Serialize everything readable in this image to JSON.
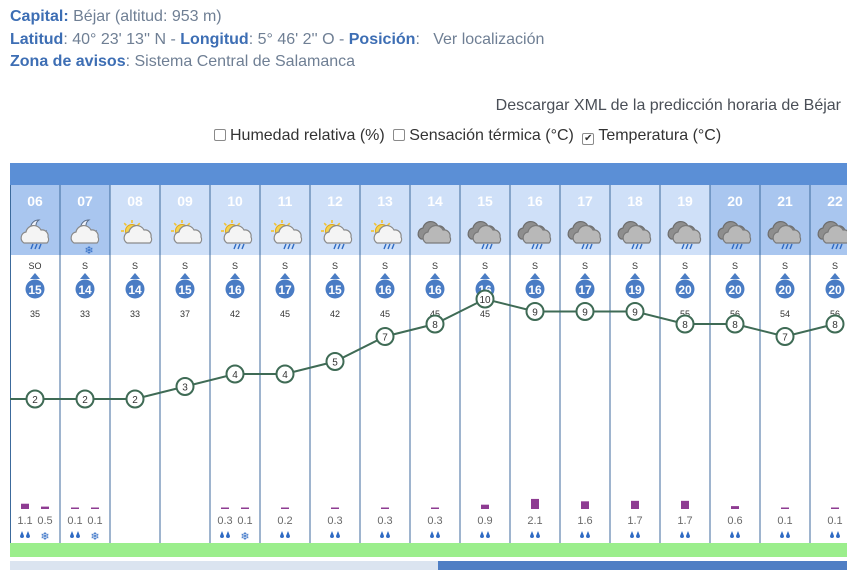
{
  "info": {
    "capital_label": "Capital:",
    "capital_value": "Béjar (altitud: 953 m)",
    "lat_label": "Latitud",
    "lat_value": ": 40° 23' 13'' N - ",
    "lon_label": "Longitud",
    "lon_value": ": 5° 46' 2'' O - ",
    "pos_label": "Posición",
    "pos_sep": ":",
    "pos_link": "Ver localización",
    "zona_label": "Zona de avisos",
    "zona_value": ": Sistema Central de Salamanca"
  },
  "xml_link": "Descargar XML de la predicción horaria de Béjar",
  "options": [
    {
      "label": "Humedad relativa (%)",
      "checked": false
    },
    {
      "label": "Sensación térmica (°C)",
      "checked": false
    },
    {
      "label": "Temperatura (°C)",
      "checked": true
    }
  ],
  "colors": {
    "header_band": "#5b8fd6",
    "night_cell": "#a9c6ef",
    "day_cell": "#cfe0f8",
    "wind_circle": "#4a7cc4",
    "line": "#3f6b55",
    "rain_bar": "#8e3c92",
    "green_band": "#9bee8c"
  },
  "chart_data": {
    "type": "line",
    "hours": [
      "06",
      "07",
      "08",
      "09",
      "10",
      "11",
      "12",
      "13",
      "14",
      "15",
      "16",
      "17",
      "18",
      "19",
      "20",
      "21",
      "22"
    ],
    "night": [
      true,
      true,
      false,
      false,
      false,
      false,
      false,
      false,
      false,
      false,
      false,
      false,
      false,
      false,
      true,
      true,
      true
    ],
    "sky": [
      "rain-night",
      "snow-night",
      "sun-clouds",
      "sun-clouds",
      "sun-rain",
      "sun-rain",
      "sun-rain",
      "sun-rain",
      "clouds",
      "clouds-rain",
      "clouds-rain",
      "clouds-rain",
      "clouds-rain",
      "clouds-rain",
      "clouds-rain",
      "clouds-rain",
      "clouds-rain"
    ],
    "wind_dir": [
      "SO",
      "S",
      "S",
      "S",
      "S",
      "S",
      "S",
      "S",
      "S",
      "S",
      "S",
      "S",
      "S",
      "S",
      "S",
      "S",
      "S"
    ],
    "wind_speed": [
      15,
      14,
      14,
      15,
      16,
      17,
      15,
      16,
      16,
      16,
      16,
      17,
      19,
      20,
      20,
      20,
      20
    ],
    "gusts": [
      35,
      33,
      33,
      37,
      42,
      45,
      42,
      45,
      45,
      45,
      46,
      49,
      53,
      55,
      56,
      54,
      56
    ],
    "temperature": [
      2,
      2,
      2,
      3,
      4,
      4,
      5,
      7,
      8,
      10,
      9,
      9,
      9,
      8,
      8,
      7,
      8
    ],
    "precip": [
      [
        {
          "v": "1.1",
          "t": "rain"
        },
        {
          "v": "0.5",
          "t": "snow"
        }
      ],
      [
        {
          "v": "0.1",
          "t": "rain"
        },
        {
          "v": "0.1",
          "t": "snow"
        }
      ],
      [],
      [],
      [
        {
          "v": "0.3",
          "t": "rain"
        },
        {
          "v": "0.1",
          "t": "snow"
        }
      ],
      [
        {
          "v": "0.2",
          "t": "rain"
        }
      ],
      [
        {
          "v": "0.3",
          "t": "rain"
        }
      ],
      [
        {
          "v": "0.3",
          "t": "rain"
        }
      ],
      [
        {
          "v": "0.3",
          "t": "rain"
        }
      ],
      [
        {
          "v": "0.9",
          "t": "rain"
        }
      ],
      [
        {
          "v": "2.1",
          "t": "rain"
        }
      ],
      [
        {
          "v": "1.6",
          "t": "rain"
        }
      ],
      [
        {
          "v": "1.7",
          "t": "rain"
        }
      ],
      [
        {
          "v": "1.7",
          "t": "rain"
        }
      ],
      [
        {
          "v": "0.6",
          "t": "rain"
        }
      ],
      [
        {
          "v": "0.1",
          "t": "rain"
        }
      ],
      [
        {
          "v": "0.1",
          "t": "rain"
        }
      ]
    ]
  }
}
